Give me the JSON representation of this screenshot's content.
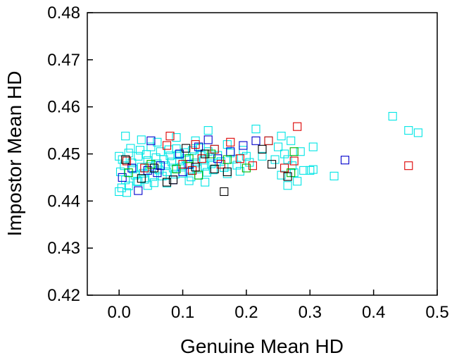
{
  "chart_data": {
    "type": "scatter",
    "title": "",
    "xlabel": "Genuine Mean HD",
    "ylabel": "Impostor Mean HD",
    "xlim": [
      -0.05,
      0.5
    ],
    "ylim": [
      0.42,
      0.48
    ],
    "xticks": [
      0.0,
      0.1,
      0.2,
      0.3,
      0.4,
      0.5
    ],
    "xtick_labels": [
      "0.0",
      "0.1",
      "0.2",
      "0.3",
      "0.4",
      "0.5"
    ],
    "yticks": [
      0.42,
      0.43,
      0.44,
      0.45,
      0.46,
      0.47,
      0.48
    ],
    "ytick_labels": [
      "0.42",
      "0.43",
      "0.44",
      "0.45",
      "0.46",
      "0.47",
      "0.48"
    ],
    "grid": false,
    "marker": "open-square",
    "series": [
      {
        "color": "#00e5e5",
        "points": [
          [
            0.0,
            0.4495
          ],
          [
            0.005,
            0.4488
          ],
          [
            0.008,
            0.4475
          ],
          [
            0.002,
            0.4462
          ],
          [
            0.01,
            0.4445
          ],
          [
            0.004,
            0.4428
          ],
          [
            0.012,
            0.4418
          ],
          [
            0.015,
            0.4502
          ],
          [
            0.018,
            0.4512
          ],
          [
            0.02,
            0.4481
          ],
          [
            0.022,
            0.4468
          ],
          [
            0.025,
            0.4455
          ],
          [
            0.028,
            0.4442
          ],
          [
            0.03,
            0.4495
          ],
          [
            0.033,
            0.4508
          ],
          [
            0.035,
            0.4472
          ],
          [
            0.038,
            0.4459
          ],
          [
            0.04,
            0.4446
          ],
          [
            0.043,
            0.4499
          ],
          [
            0.045,
            0.4486
          ],
          [
            0.048,
            0.4473
          ],
          [
            0.05,
            0.4515
          ],
          [
            0.053,
            0.4452
          ],
          [
            0.055,
            0.4439
          ],
          [
            0.058,
            0.4492
          ],
          [
            0.06,
            0.4479
          ],
          [
            0.063,
            0.4466
          ],
          [
            0.065,
            0.4505
          ],
          [
            0.068,
            0.4453
          ],
          [
            0.07,
            0.4488
          ],
          [
            0.073,
            0.4475
          ],
          [
            0.075,
            0.4462
          ],
          [
            0.078,
            0.4509
          ],
          [
            0.08,
            0.4496
          ],
          [
            0.083,
            0.4483
          ],
          [
            0.085,
            0.447
          ],
          [
            0.088,
            0.4457
          ],
          [
            0.09,
            0.4511
          ],
          [
            0.093,
            0.4498
          ],
          [
            0.095,
            0.4485
          ],
          [
            0.098,
            0.4472
          ],
          [
            0.1,
            0.4459
          ],
          [
            0.103,
            0.4503
          ],
          [
            0.105,
            0.449
          ],
          [
            0.108,
            0.4477
          ],
          [
            0.11,
            0.4464
          ],
          [
            0.113,
            0.4451
          ],
          [
            0.115,
            0.4507
          ],
          [
            0.118,
            0.4494
          ],
          [
            0.12,
            0.4481
          ],
          [
            0.123,
            0.4468
          ],
          [
            0.125,
            0.4455
          ],
          [
            0.128,
            0.4513
          ],
          [
            0.13,
            0.45
          ],
          [
            0.133,
            0.4487
          ],
          [
            0.135,
            0.4474
          ],
          [
            0.138,
            0.4461
          ],
          [
            0.14,
            0.4505
          ],
          [
            0.143,
            0.4492
          ],
          [
            0.145,
            0.4479
          ],
          [
            0.148,
            0.4466
          ],
          [
            0.15,
            0.451
          ],
          [
            0.155,
            0.4497
          ],
          [
            0.16,
            0.4484
          ],
          [
            0.165,
            0.4471
          ],
          [
            0.17,
            0.4458
          ],
          [
            0.175,
            0.4502
          ],
          [
            0.18,
            0.4489
          ],
          [
            0.185,
            0.4476
          ],
          [
            0.19,
            0.4463
          ],
          [
            0.195,
            0.4508
          ],
          [
            0.2,
            0.4495
          ],
          [
            0.205,
            0.4482
          ],
          [
            0.01,
            0.4538
          ],
          [
            0.035,
            0.453
          ],
          [
            0.06,
            0.4525
          ],
          [
            0.09,
            0.4535
          ],
          [
            0.12,
            0.4528
          ],
          [
            0.14,
            0.455
          ],
          [
            0.17,
            0.452
          ],
          [
            0.215,
            0.4553
          ],
          [
            0.235,
            0.4528
          ],
          [
            0.25,
            0.4515
          ],
          [
            0.255,
            0.4538
          ],
          [
            0.26,
            0.45
          ],
          [
            0.265,
            0.4488
          ],
          [
            0.27,
            0.4528
          ],
          [
            0.272,
            0.4475
          ],
          [
            0.275,
            0.446
          ],
          [
            0.28,
            0.4442
          ],
          [
            0.285,
            0.4505
          ],
          [
            0.29,
            0.4465
          ],
          [
            0.3,
            0.4465
          ],
          [
            0.305,
            0.4515
          ],
          [
            0.305,
            0.4467
          ],
          [
            0.338,
            0.4453
          ],
          [
            0.265,
            0.4433
          ],
          [
            0.255,
            0.4455
          ],
          [
            0.245,
            0.4488
          ],
          [
            0.225,
            0.4495
          ],
          [
            0.43,
            0.458
          ],
          [
            0.455,
            0.455
          ],
          [
            0.47,
            0.4545
          ],
          [
            0.0,
            0.442
          ],
          [
            0.015,
            0.4432
          ],
          [
            0.03,
            0.4441
          ],
          [
            0.045,
            0.4433
          ],
          [
            0.075,
            0.4438
          ],
          [
            0.11,
            0.4443
          ],
          [
            0.135,
            0.444
          ]
        ]
      },
      {
        "color": "#0000cc",
        "points": [
          [
            0.005,
            0.445
          ],
          [
            0.03,
            0.4422
          ],
          [
            0.045,
            0.4465
          ],
          [
            0.05,
            0.4528
          ],
          [
            0.065,
            0.4475
          ],
          [
            0.085,
            0.4445
          ],
          [
            0.095,
            0.45
          ],
          [
            0.11,
            0.4478
          ],
          [
            0.125,
            0.4515
          ],
          [
            0.14,
            0.453
          ],
          [
            0.155,
            0.449
          ],
          [
            0.175,
            0.4505
          ],
          [
            0.195,
            0.4518
          ],
          [
            0.215,
            0.4528
          ],
          [
            0.355,
            0.4487
          ],
          [
            0.06,
            0.446
          ],
          [
            0.02,
            0.447
          ],
          [
            0.1,
            0.4462
          ]
        ]
      },
      {
        "color": "#dd0000",
        "points": [
          [
            0.012,
            0.4485
          ],
          [
            0.04,
            0.447
          ],
          [
            0.075,
            0.4518
          ],
          [
            0.08,
            0.4538
          ],
          [
            0.1,
            0.4478
          ],
          [
            0.115,
            0.4465
          ],
          [
            0.12,
            0.452
          ],
          [
            0.13,
            0.449
          ],
          [
            0.15,
            0.451
          ],
          [
            0.16,
            0.4478
          ],
          [
            0.175,
            0.4525
          ],
          [
            0.19,
            0.449
          ],
          [
            0.21,
            0.4475
          ],
          [
            0.235,
            0.4528
          ],
          [
            0.26,
            0.447
          ],
          [
            0.275,
            0.4485
          ],
          [
            0.28,
            0.4558
          ],
          [
            0.455,
            0.4475
          ]
        ]
      },
      {
        "color": "#00b300",
        "points": [
          [
            0.015,
            0.446
          ],
          [
            0.05,
            0.4478
          ],
          [
            0.09,
            0.4468
          ],
          [
            0.125,
            0.4455
          ],
          [
            0.145,
            0.45
          ],
          [
            0.17,
            0.4488
          ],
          [
            0.2,
            0.447
          ],
          [
            0.275,
            0.4505
          ],
          [
            0.27,
            0.446
          ],
          [
            0.11,
            0.449
          ]
        ]
      },
      {
        "color": "#000000",
        "points": [
          [
            0.01,
            0.4488
          ],
          [
            0.035,
            0.4448
          ],
          [
            0.055,
            0.447
          ],
          [
            0.085,
            0.4445
          ],
          [
            0.105,
            0.4512
          ],
          [
            0.12,
            0.4472
          ],
          [
            0.135,
            0.45
          ],
          [
            0.15,
            0.4468
          ],
          [
            0.165,
            0.442
          ],
          [
            0.17,
            0.4462
          ],
          [
            0.225,
            0.451
          ],
          [
            0.24,
            0.4478
          ],
          [
            0.265,
            0.4452
          ],
          [
            0.075,
            0.444
          ]
        ]
      }
    ]
  }
}
